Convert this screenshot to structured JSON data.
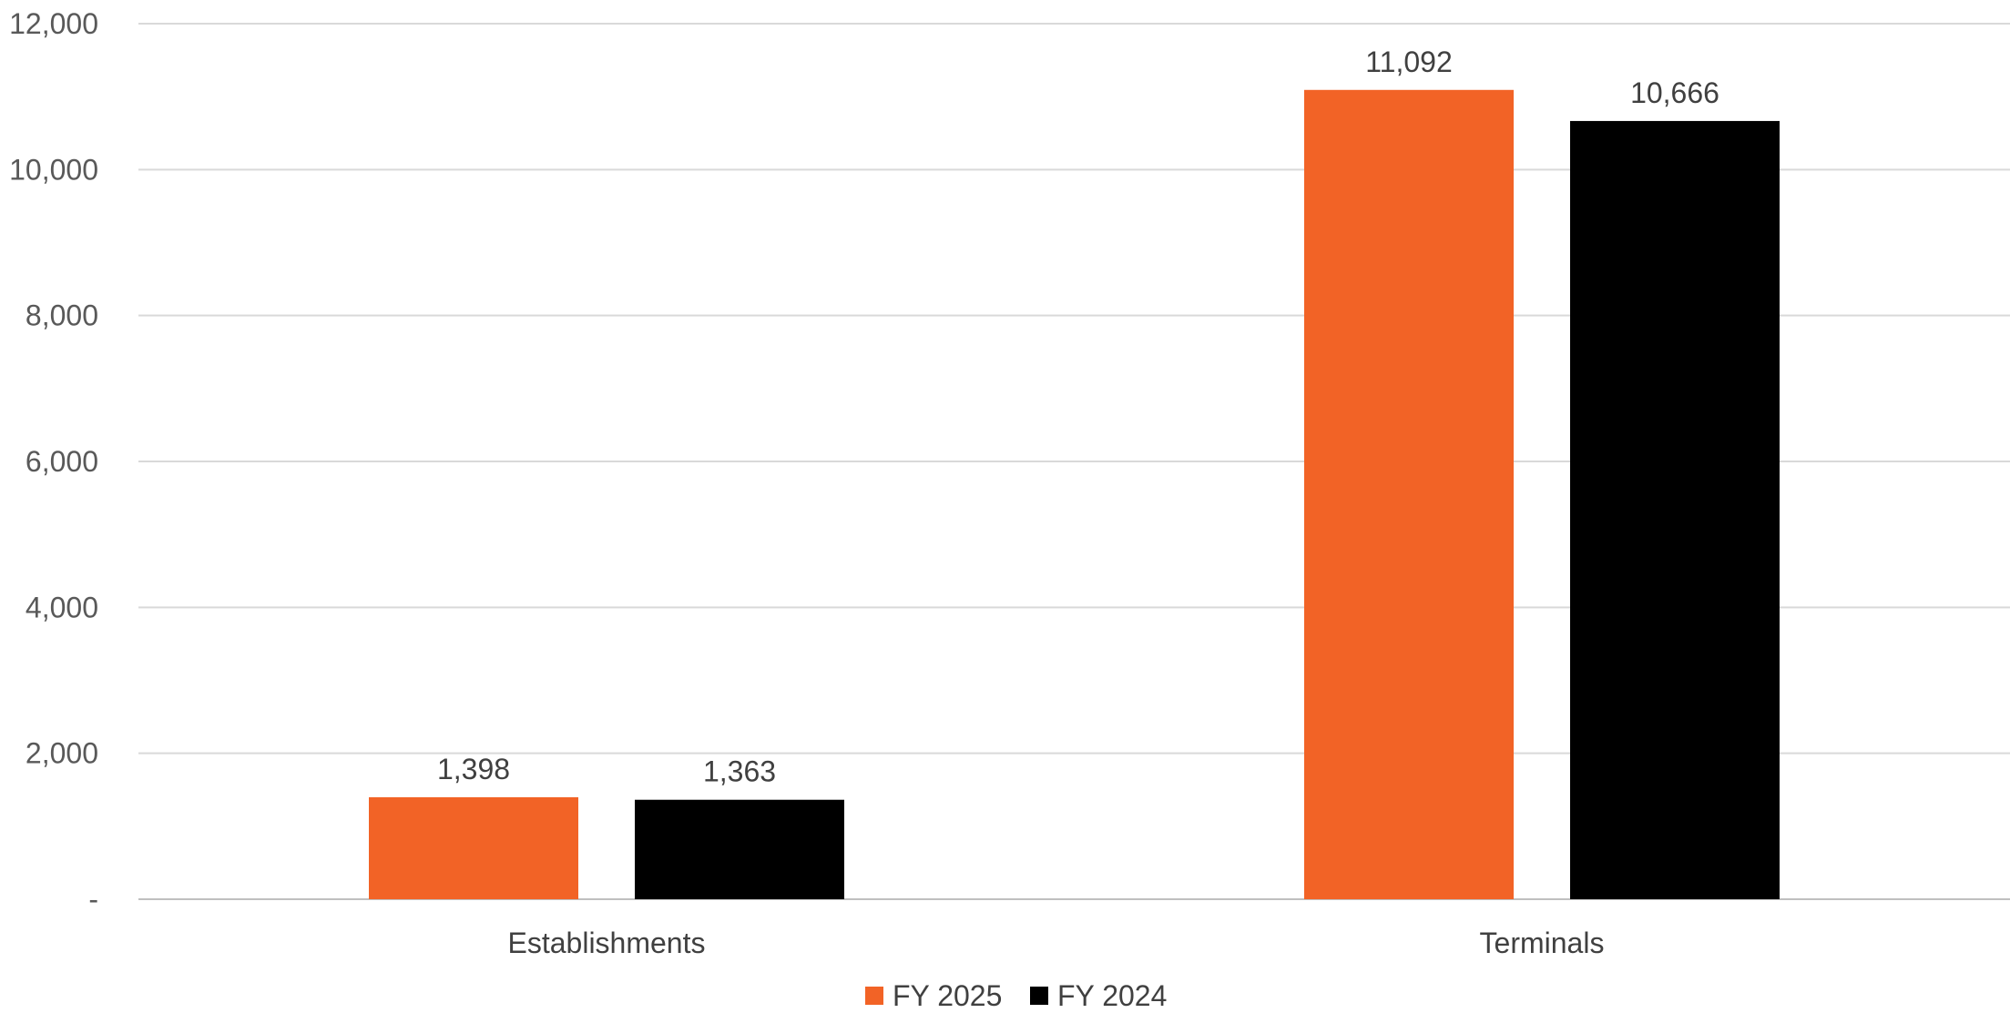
{
  "chart_data": {
    "type": "bar",
    "categories": [
      "Establishments",
      "Terminals"
    ],
    "series": [
      {
        "name": "FY 2025",
        "color": "#f26326",
        "values": [
          1398,
          11092
        ],
        "labels": [
          "1,398",
          "11,092"
        ]
      },
      {
        "name": "FY 2024",
        "color": "#000000",
        "values": [
          1363,
          10666
        ],
        "labels": [
          "1,363",
          "10,666"
        ]
      }
    ],
    "title": "",
    "xlabel": "",
    "ylabel": "",
    "ylim": [
      0,
      12000
    ],
    "yticks": [
      0,
      2000,
      4000,
      6000,
      8000,
      10000,
      12000
    ],
    "ytick_labels": [
      "-",
      "2,000",
      "4,000",
      "6,000",
      "8,000",
      "10,000",
      "12,000"
    ],
    "grid": true,
    "legend_position": "bottom"
  }
}
